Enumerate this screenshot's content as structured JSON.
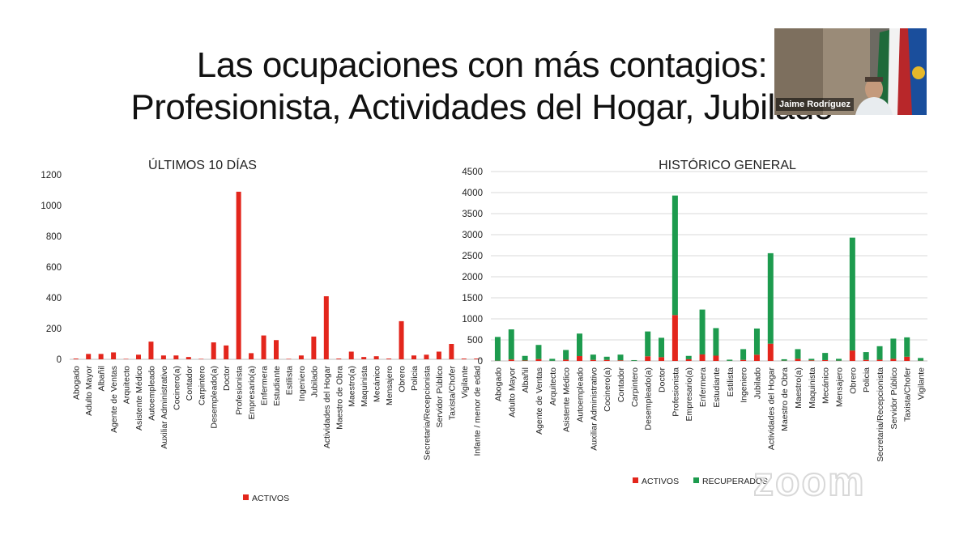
{
  "slide": {
    "title_line1": "Las ocupaciones con más contagios:",
    "title_line2": "Profesionista, Actividades del Hogar, Jubilado"
  },
  "video": {
    "name": "Jaime Rodríguez"
  },
  "watermark": {
    "text": "zoom"
  },
  "colors": {
    "activos": "#e3261c",
    "recuperados": "#1d9b4e"
  },
  "chart_data": [
    {
      "type": "bar",
      "title": "ÚLTIMOS 10 DÍAS",
      "ylim": [
        0,
        1200
      ],
      "yticks": [
        "0",
        "200",
        "400",
        "600",
        "800",
        "1000",
        "1200"
      ],
      "grid": false,
      "legend_position": "bottom",
      "categories": [
        "Abogado",
        "Adulto Mayor",
        "Albañil",
        "Agente de Ventas",
        "Arquitecto",
        "Asistente Médico",
        "Autoempleado",
        "Auxiliar Administrativo",
        "Cocinero(a)",
        "Contador",
        "Carpintero",
        "Desempleado(a)",
        "Doctor",
        "Profesionista",
        "Empresario(a)",
        "Enfermera",
        "Estudiante",
        "Estilista",
        "Ingeniero",
        "Jubilado",
        "Actividades del Hogar",
        "Maestro de Obra",
        "Maestro(a)",
        "Maquinista",
        "Mecánico",
        "Mensajero",
        "Obrero",
        "Policia",
        "Secretaria/Recepcionista",
        "Servidor Público",
        "Taxista/Chofer",
        "Vigilante",
        "Infante / menor de edad"
      ],
      "series": [
        {
          "name": "ACTIVOS",
          "values": [
            5,
            35,
            35,
            45,
            3,
            30,
            115,
            25,
            25,
            15,
            3,
            110,
            90,
            1090,
            40,
            155,
            125,
            3,
            25,
            148,
            410,
            5,
            50,
            15,
            20,
            5,
            248,
            25,
            30,
            50,
            100,
            5,
            5
          ]
        }
      ]
    },
    {
      "type": "bar",
      "stacked": true,
      "title": "HISTÓRICO GENERAL",
      "ylim": [
        0,
        4500
      ],
      "yticks": [
        "0",
        "500",
        "1000",
        "1500",
        "2000",
        "2500",
        "3000",
        "3500",
        "4000",
        "4500"
      ],
      "grid": true,
      "legend_position": "bottom",
      "categories": [
        "Abogado",
        "Adulto Mayor",
        "Albañil",
        "Agente de Ventas",
        "Arquitecto",
        "Asistente Médico",
        "Autoempleado",
        "Auxiliar Administrativo",
        "Cocinero(a)",
        "Contador",
        "Carpintero",
        "Desempleado(a)",
        "Doctor",
        "Profesionista",
        "Empresario(a)",
        "Enfermera",
        "Estudiante",
        "Estilista",
        "Ingeniero",
        "Jubilado",
        "Actividades del Hogar",
        "Maestro de Obra",
        "Maestro(a)",
        "Maquinista",
        "Mecánico",
        "Mensajero",
        "Obrero",
        "Policia",
        "Secretaria/Recepcionista",
        "Servidor Público",
        "Taxista/Chofer",
        "Vigilante"
      ],
      "series": [
        {
          "name": "ACTIVOS",
          "values": [
            5,
            35,
            10,
            45,
            3,
            30,
            115,
            25,
            25,
            15,
            3,
            110,
            90,
            1090,
            40,
            155,
            125,
            3,
            25,
            148,
            410,
            5,
            50,
            15,
            20,
            5,
            248,
            25,
            30,
            50,
            100,
            5
          ]
        },
        {
          "name": "RECUPERADOS",
          "values": [
            565,
            715,
            110,
            335,
            47,
            230,
            535,
            125,
            75,
            135,
            17,
            590,
            460,
            2840,
            80,
            1065,
            655,
            27,
            255,
            622,
            2150,
            35,
            230,
            35,
            170,
            45,
            2682,
            185,
            320,
            480,
            460,
            65
          ]
        }
      ]
    }
  ]
}
